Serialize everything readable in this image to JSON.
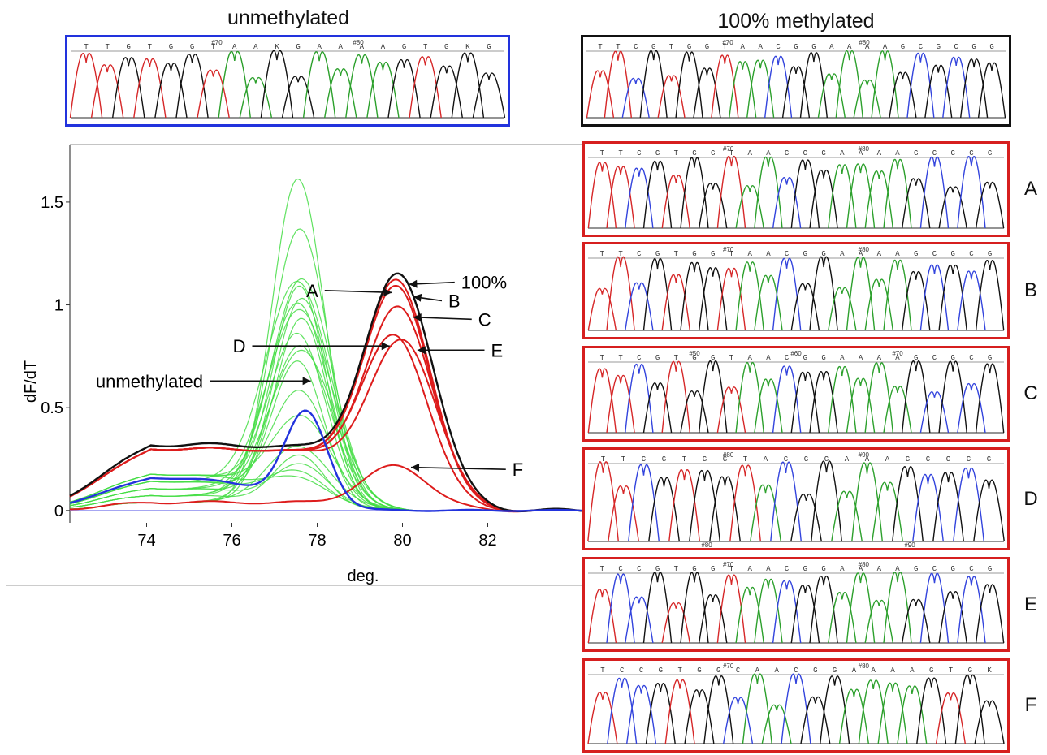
{
  "titles": {
    "unmethylated": "unmethylated",
    "methylated": "100% methylated"
  },
  "chart_data": {
    "type": "line",
    "title": "",
    "xlabel": "deg.",
    "ylabel": "dF/dT",
    "xlim": [
      72.2,
      84.2
    ],
    "ylim": [
      -0.06,
      1.78
    ],
    "xticks": [
      "74",
      "76",
      "78",
      "80",
      "82"
    ],
    "yticks": [
      "0",
      "0.5",
      "1",
      "1.5"
    ],
    "grid": false,
    "green_series": {
      "color": "#44dd44",
      "peaks": [
        1.6,
        1.35,
        1.1,
        1.08,
        1.05,
        1.02,
        0.99,
        0.95,
        0.9,
        0.82,
        0.79,
        0.76,
        0.7,
        0.55,
        0.42,
        0.3,
        0.25,
        0.2,
        0.16,
        0.12
      ],
      "peak_x": 77.6
    },
    "unmethylated_series": {
      "color": "#2233dd",
      "peak_x": 77.75,
      "peak_y": 0.63
    },
    "methylated_series": {
      "color": "#111111",
      "peak_x": 79.95,
      "peak_y": 1.1
    },
    "red_series": [
      {
        "name": "A",
        "peak_x": 79.9,
        "peak_y": 1.07
      },
      {
        "name": "B",
        "peak_x": 79.9,
        "peak_y": 1.04
      },
      {
        "name": "C",
        "peak_x": 79.95,
        "peak_y": 0.94
      },
      {
        "name": "D",
        "peak_x": 79.85,
        "peak_y": 0.8
      },
      {
        "name": "E",
        "peak_x": 80.05,
        "peak_y": 0.78
      },
      {
        "name": "F",
        "peak_x": 79.85,
        "peak_y": 0.21
      }
    ],
    "annotations": [
      {
        "label": "A",
        "target": [
          79.75,
          1.06
        ]
      },
      {
        "label": "100%",
        "target": [
          80.15,
          1.1
        ]
      },
      {
        "label": "B",
        "target": [
          80.25,
          1.04
        ]
      },
      {
        "label": "C",
        "target": [
          80.25,
          0.94
        ]
      },
      {
        "label": "D",
        "target": [
          79.7,
          0.8
        ]
      },
      {
        "label": "E",
        "target": [
          80.35,
          0.78
        ]
      },
      {
        "label": "unmethylated",
        "target": [
          77.85,
          0.63
        ]
      },
      {
        "label": "F",
        "target": [
          80.2,
          0.21
        ]
      }
    ],
    "colors": {
      "red": "#dd1c1c",
      "black": "#111111",
      "blue": "#2233dd",
      "green": "#44dd44"
    }
  },
  "sequences": {
    "unmethylated": {
      "bases": "T T G T G G T A A K G A A A A G T G K G",
      "markers": [
        "#70",
        "#80"
      ],
      "border": "#2233dd"
    },
    "methylated": {
      "bases": "T T C G T G G T A A C G G A A A A G C G C G G",
      "markers": [
        "#70",
        "#80"
      ],
      "border": "#111111"
    },
    "panels": [
      {
        "letter": "A",
        "bases": "T T C G T G G T A A C G G A A A A G C G C G",
        "markers": [
          "#70",
          "#80"
        ]
      },
      {
        "letter": "B",
        "bases": "T T C G T G G T A A C G G A A A A G C G C G",
        "markers": [
          "#70",
          "#80"
        ]
      },
      {
        "letter": "C",
        "bases": "T T C G T G G T A A C G G A A A A G C G C G",
        "markers": [
          "#50",
          "#60",
          "#70"
        ]
      },
      {
        "letter": "D",
        "bases": "T T C G T G G T A C G G A A A G C G C G",
        "markers": [
          "#80",
          "#90"
        ],
        "lower_markers": [
          "#80",
          "#90"
        ]
      },
      {
        "letter": "E",
        "bases": "T C C G T G G T A A C G G A A A A G C G C G",
        "markers": [
          "#70",
          "#80"
        ]
      },
      {
        "letter": "F",
        "bases": "T C C G T G G C A A C G G A A A A G T G K",
        "markers": [
          "#70",
          "#80"
        ]
      }
    ]
  }
}
